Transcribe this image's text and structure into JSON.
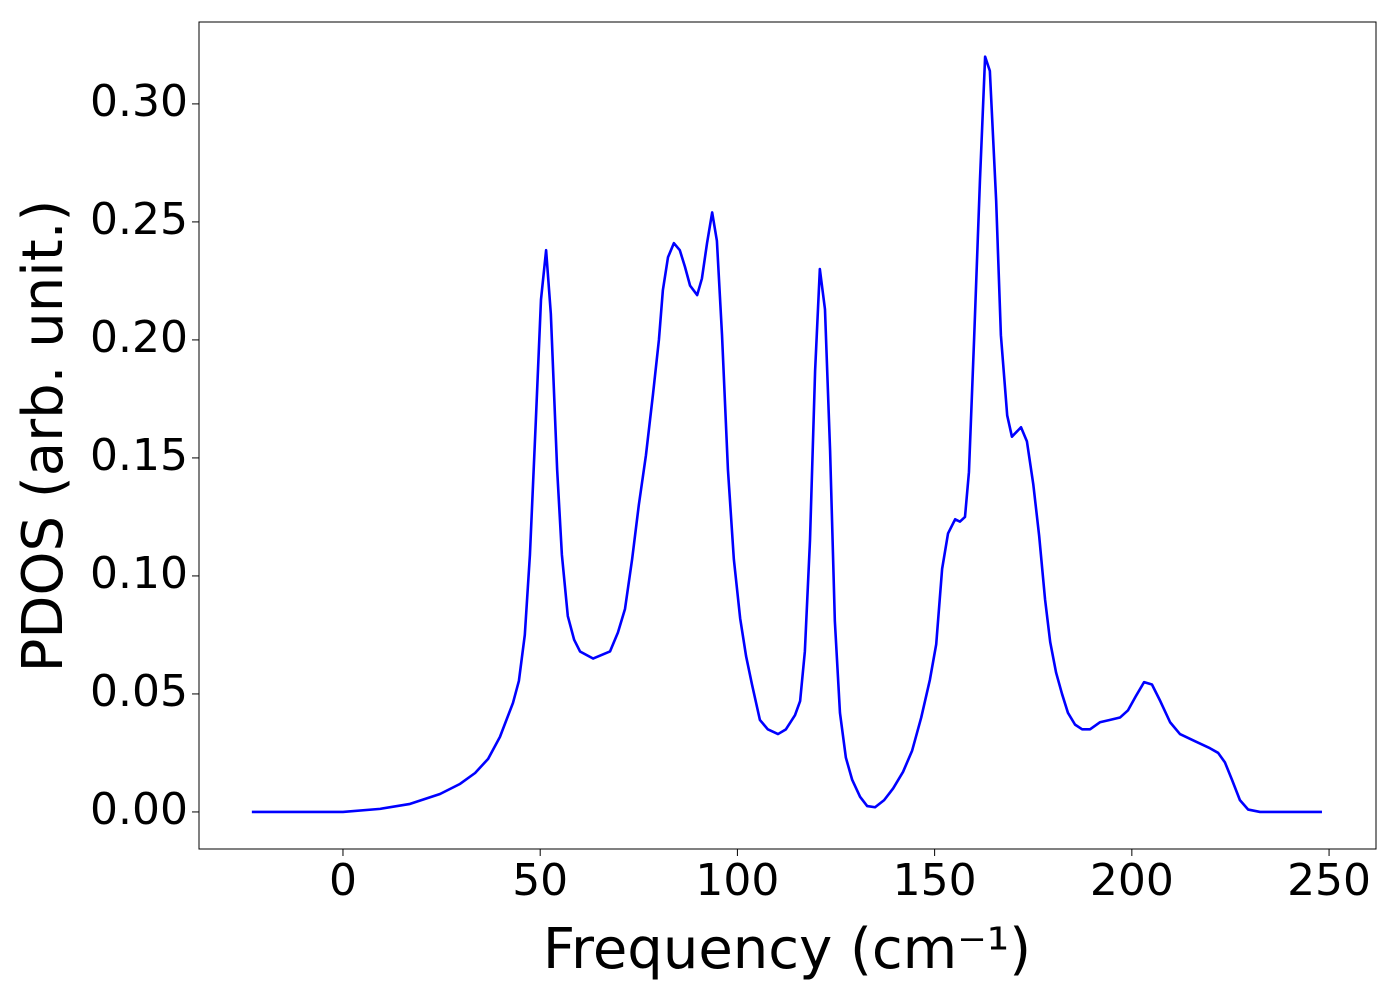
{
  "chart_data": {
    "type": "line",
    "xlabel": "Frequency (cm⁻¹)",
    "ylabel": "PDOS (arb. unit.)",
    "xlim": [
      -36.5,
      261.9
    ],
    "ylim": [
      -0.0157,
      0.3347
    ],
    "xticks": [
      0,
      50,
      100,
      150,
      200,
      250
    ],
    "yticks": [
      {
        "value": 0,
        "label": "0.00"
      },
      {
        "value": 0.05,
        "label": "0.05"
      },
      {
        "value": 0.1,
        "label": "0.10"
      },
      {
        "value": 0.15,
        "label": "0.15"
      },
      {
        "value": 0.2,
        "label": "0.20"
      },
      {
        "value": 0.25,
        "label": "0.25"
      },
      {
        "value": 0.3,
        "label": "0.30"
      }
    ],
    "x": [
      -23.1,
      0,
      9.4,
      17,
      24.6,
      29.7,
      33.5,
      36.8,
      39.8,
      43.1,
      44.6,
      46.1,
      47.4,
      48.9,
      50.2,
      51.5,
      52.7,
      54.3,
      55.5,
      57,
      58.6,
      60.1,
      63.4,
      67.7,
      69.7,
      71.5,
      73.3,
      75,
      76.8,
      78.6,
      80.1,
      81.1,
      82.4,
      83.9,
      85.4,
      86.7,
      88,
      89.8,
      91,
      92.3,
      93.6,
      94.8,
      96.1,
      97.6,
      99.1,
      100.7,
      102.2,
      103.7,
      105.7,
      107.7,
      110.3,
      112.3,
      114.6,
      115.9,
      117.1,
      118.4,
      119.7,
      120.9,
      122.2,
      123.5,
      124.7,
      126,
      127.5,
      129.1,
      131.1,
      132.9,
      134.9,
      137.2,
      139.5,
      142,
      144.3,
      146.6,
      148.8,
      150.4,
      151.9,
      153.4,
      155.2,
      156.4,
      157.7,
      158.7,
      160,
      161.5,
      162.8,
      164,
      165.6,
      166.8,
      168.4,
      169.6,
      171.9,
      173.4,
      175,
      176.5,
      178,
      179.3,
      180.8,
      182.3,
      183.8,
      185.6,
      187.4,
      189.4,
      191.9,
      194.5,
      197,
      199,
      201,
      203.1,
      205.1,
      207.2,
      209.7,
      212.2,
      216,
      219.8,
      221.9,
      223.6,
      225.4,
      227.4,
      229.5,
      232.5,
      248.2
    ],
    "series": [
      {
        "name": "PDOS",
        "color": "#0000ff",
        "values": [
          0,
          0,
          0.0013,
          0.0034,
          0.0076,
          0.0119,
          0.0165,
          0.0225,
          0.0318,
          0.0462,
          0.0555,
          0.075,
          0.109,
          0.166,
          0.217,
          0.238,
          0.211,
          0.145,
          0.109,
          0.083,
          0.073,
          0.068,
          0.065,
          0.068,
          0.076,
          0.086,
          0.107,
          0.13,
          0.151,
          0.177,
          0.2,
          0.221,
          0.235,
          0.241,
          0.238,
          0.231,
          0.223,
          0.219,
          0.226,
          0.241,
          0.254,
          0.242,
          0.202,
          0.145,
          0.107,
          0.082,
          0.066,
          0.054,
          0.039,
          0.035,
          0.033,
          0.035,
          0.041,
          0.047,
          0.068,
          0.115,
          0.187,
          0.23,
          0.213,
          0.153,
          0.081,
          0.042,
          0.023,
          0.0136,
          0.0064,
          0.0025,
          0.002,
          0.005,
          0.01,
          0.017,
          0.026,
          0.04,
          0.056,
          0.071,
          0.103,
          0.118,
          0.124,
          0.123,
          0.125,
          0.144,
          0.2,
          0.268,
          0.32,
          0.314,
          0.259,
          0.202,
          0.168,
          0.159,
          0.163,
          0.157,
          0.139,
          0.117,
          0.09,
          0.072,
          0.059,
          0.05,
          0.042,
          0.037,
          0.035,
          0.035,
          0.038,
          0.039,
          0.04,
          0.043,
          0.049,
          0.055,
          0.054,
          0.047,
          0.038,
          0.033,
          0.03,
          0.027,
          0.025,
          0.021,
          0.0136,
          0.005,
          0.001,
          0,
          0
        ]
      }
    ]
  }
}
